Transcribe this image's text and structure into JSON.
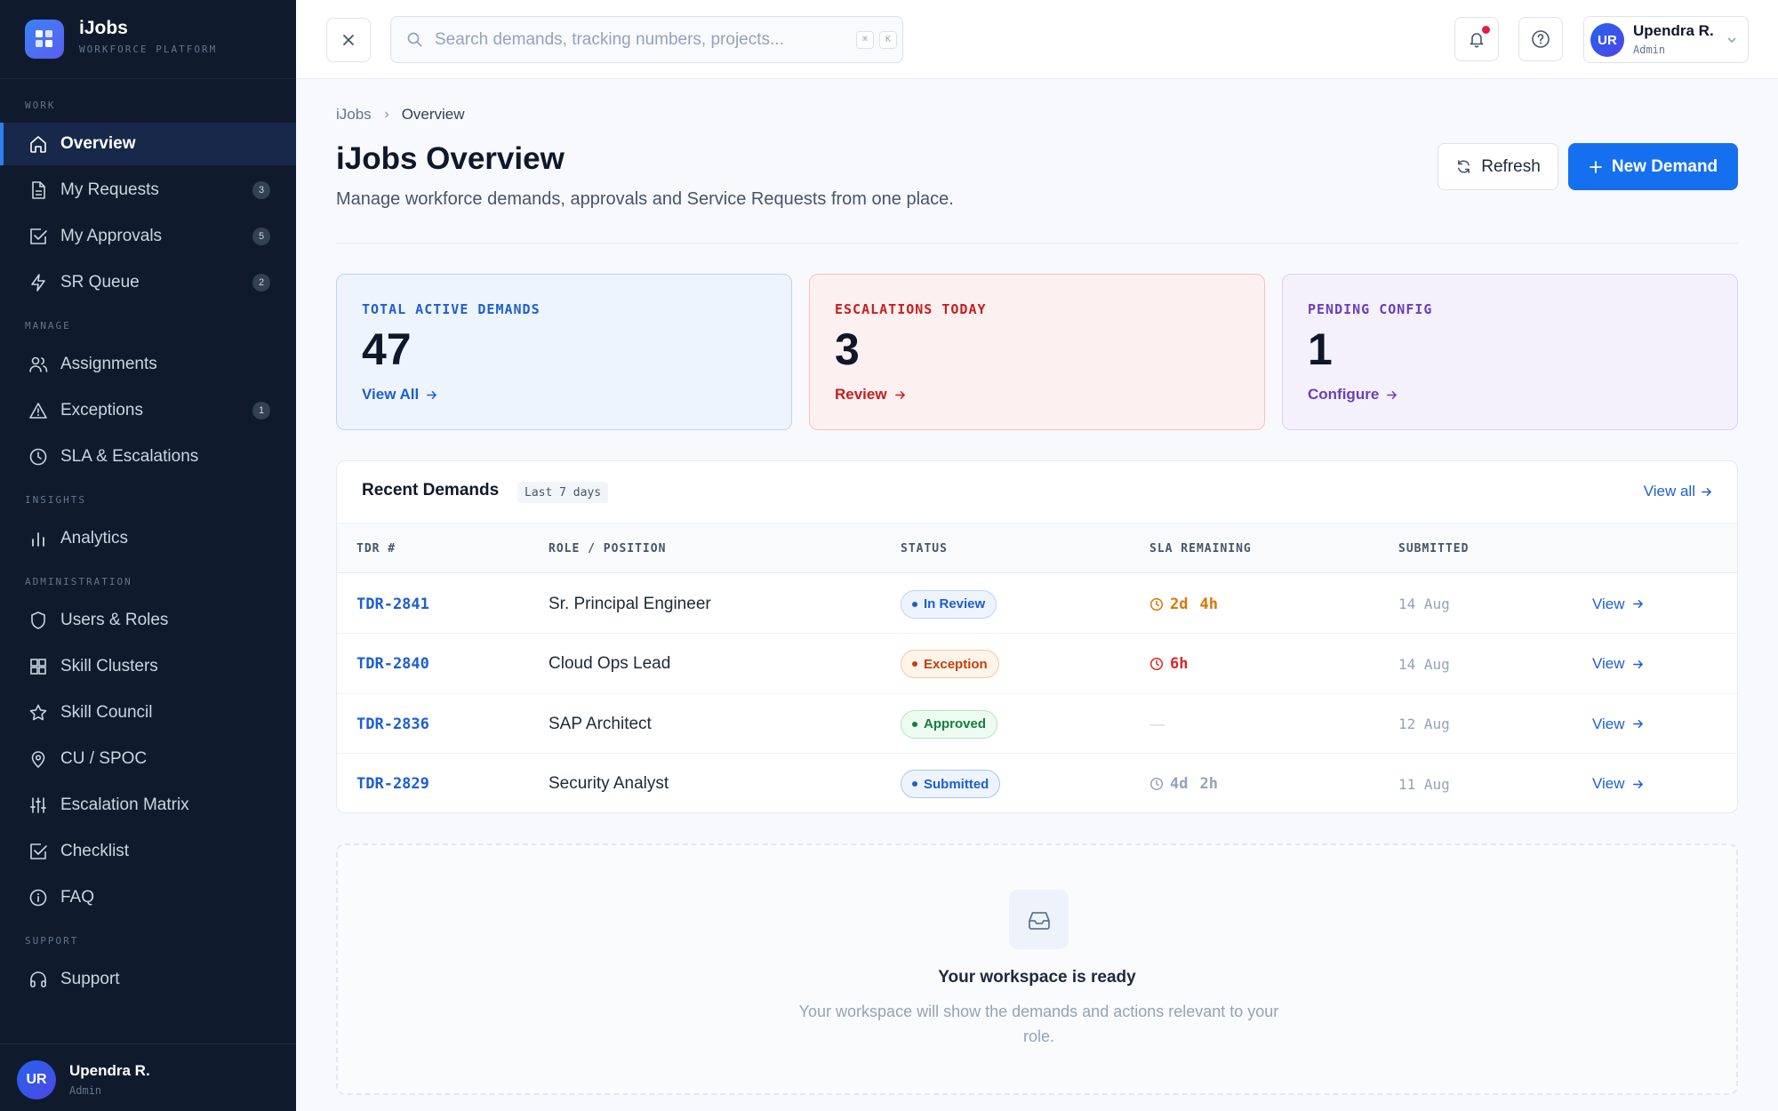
{
  "brand": {
    "name": "iJobs",
    "subtitle": "WORKFORCE PLATFORM"
  },
  "sidebar": {
    "sections": [
      {
        "label": "WORK",
        "items": [
          {
            "label": "Overview",
            "icon": "home-icon",
            "active": true
          },
          {
            "label": "My Requests",
            "icon": "document-icon",
            "badge": "3"
          },
          {
            "label": "My Approvals",
            "icon": "check-square-icon",
            "badge": "5"
          },
          {
            "label": "SR Queue",
            "icon": "bolt-icon",
            "badge": "2"
          }
        ]
      },
      {
        "label": "MANAGE",
        "items": [
          {
            "label": "Assignments",
            "icon": "users-icon"
          },
          {
            "label": "Exceptions",
            "icon": "warning-icon",
            "badge": "1"
          },
          {
            "label": "SLA & Escalations",
            "icon": "clock-icon"
          }
        ]
      },
      {
        "label": "INSIGHTS",
        "items": [
          {
            "label": "Analytics",
            "icon": "bar-chart-icon"
          }
        ]
      },
      {
        "label": "ADMINISTRATION",
        "items": [
          {
            "label": "Users & Roles",
            "icon": "shield-icon"
          },
          {
            "label": "Skill Clusters",
            "icon": "grid-icon"
          },
          {
            "label": "Skill Council",
            "icon": "star-icon"
          },
          {
            "label": "CU / SPOC",
            "icon": "map-pin-icon"
          },
          {
            "label": "Escalation Matrix",
            "icon": "sliders-icon"
          },
          {
            "label": "Checklist",
            "icon": "check-square-icon"
          },
          {
            "label": "FAQ",
            "icon": "info-icon"
          }
        ]
      },
      {
        "label": "SUPPORT",
        "items": [
          {
            "label": "Support",
            "icon": "headphones-icon"
          }
        ]
      }
    ],
    "user": {
      "initials": "UR",
      "name": "Upendra R.",
      "role": "Admin"
    }
  },
  "topbar": {
    "search_placeholder": "Search demands, tracking numbers, projects...",
    "shortcut_keys": [
      "⌘",
      "K"
    ],
    "user": {
      "initials": "UR",
      "name": "Upendra R.",
      "role": "Admin"
    }
  },
  "breadcrumb": [
    "iJobs",
    "Overview"
  ],
  "page": {
    "title": "iJobs Overview",
    "subtitle": "Manage workforce demands, approvals and Service Requests from one place.",
    "refresh_label": "Refresh",
    "new_label": "New Demand"
  },
  "stats": [
    {
      "label": "TOTAL ACTIVE DEMANDS",
      "value": "47",
      "link": "View All",
      "color": "#1d5fd0"
    },
    {
      "label": "ESCALATIONS TODAY",
      "value": "3",
      "link": "Review",
      "color": "#c81e1e"
    },
    {
      "label": "PENDING CONFIG",
      "value": "1",
      "link": "Configure",
      "color": "#6b3fb8"
    }
  ],
  "recent": {
    "title": "Recent Demands",
    "range": "Last 7 days",
    "view_all": "View all",
    "columns": [
      "TDR #",
      "ROLE / POSITION",
      "STATUS",
      "SLA REMAINING",
      "SUBMITTED"
    ],
    "rows": [
      {
        "tdr": "TDR-2841",
        "role": "Sr. Principal Engineer",
        "status": "In Review",
        "status_kind": "review",
        "sla": [
          "2d",
          "4h"
        ],
        "sla_kind": "warn",
        "submitted": "14 Aug",
        "action": "View"
      },
      {
        "tdr": "TDR-2840",
        "role": "Cloud Ops Lead",
        "status": "Exception",
        "status_kind": "exception",
        "sla": [
          "6h"
        ],
        "sla_kind": "danger",
        "submitted": "14 Aug",
        "action": "View"
      },
      {
        "tdr": "TDR-2836",
        "role": "SAP Architect",
        "status": "Approved",
        "status_kind": "approved",
        "sla": [
          "—"
        ],
        "sla_kind": "none",
        "submitted": "12 Aug",
        "action": "View"
      },
      {
        "tdr": "TDR-2829",
        "role": "Security Analyst",
        "status": "Submitted",
        "status_kind": "submitted",
        "sla": [
          "4d",
          "2h"
        ],
        "sla_kind": "muted",
        "submitted": "11 Aug",
        "action": "View"
      }
    ]
  },
  "empty": {
    "title": "Your workspace is ready",
    "text": "Your workspace will show the demands and actions relevant to your role."
  },
  "colors": {
    "accent": "#1570ef",
    "sidebar_bg": "#0f1b2d",
    "notification_dot": "#e11d48"
  }
}
